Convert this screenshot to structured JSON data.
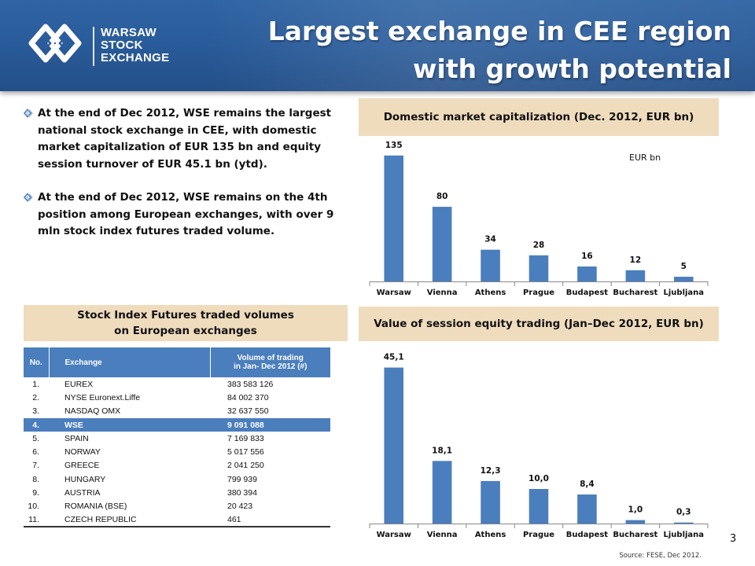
{
  "header": {
    "logo_lines": [
      "WARSAW",
      "STOCK",
      "EXCHANGE"
    ],
    "title_lines": [
      "Largest exchange in CEE region",
      "with growth potential"
    ]
  },
  "bullets": [
    "At the end of Dec 2012, WSE remains the largest national stock exchange in CEE, with domestic market capitalization of EUR 135 bn and equity session turnover of EUR 45.1 bn (ytd).",
    "At the end of Dec 2012, WSE remains on the 4th position among European exchanges, with over 9 mln stock index futures traded volume."
  ],
  "futures": {
    "heading_lines": [
      "Stock Index Futures traded volumes",
      "on European exchanges"
    ],
    "columns": {
      "no": "No.",
      "exchange": "Exchange",
      "volume_lines": [
        "Volume of trading",
        "in Jan- Dec 2012 (#)"
      ]
    },
    "highlight_row": 3,
    "rows": [
      {
        "no": "1.",
        "exchange": "EUREX",
        "volume": "383 583 126"
      },
      {
        "no": "2.",
        "exchange": "NYSE Euronext.Liffe",
        "volume": "84 002 370"
      },
      {
        "no": "3.",
        "exchange": "NASDAQ OMX",
        "volume": "32 637 550"
      },
      {
        "no": "4.",
        "exchange": "WSE",
        "volume": "9 091 088"
      },
      {
        "no": "5.",
        "exchange": "SPAIN",
        "volume": "7 169 833"
      },
      {
        "no": "6.",
        "exchange": "NORWAY",
        "volume": "5 017 556"
      },
      {
        "no": "7.",
        "exchange": "GREECE",
        "volume": "2 041 250"
      },
      {
        "no": "8.",
        "exchange": "HUNGARY",
        "volume": "799 939"
      },
      {
        "no": "9.",
        "exchange": "AUSTRIA",
        "volume": "380 394"
      },
      {
        "no": "10.",
        "exchange": "ROMANIA (BSE)",
        "volume": "20 423"
      },
      {
        "no": "11.",
        "exchange": "CZECH REPUBLIC",
        "volume": "461"
      }
    ]
  },
  "chart_data": [
    {
      "type": "bar",
      "title": "Domestic market capitalization (Dec. 2012, EUR bn)",
      "unit_label": "EUR bn",
      "categories": [
        "Warsaw",
        "Vienna",
        "Athens",
        "Prague",
        "Budapest",
        "Bucharest",
        "Ljubljana"
      ],
      "values": [
        135,
        80,
        34,
        28,
        16,
        12,
        5
      ],
      "labels": [
        "135",
        "80",
        "34",
        "28",
        "16",
        "12",
        "5"
      ],
      "ylim": [
        0,
        150
      ],
      "grid": false,
      "bar_color": "#4a7ebd"
    },
    {
      "type": "bar",
      "title": "Value of session equity trading (Jan–Dec 2012, EUR bn)",
      "categories": [
        "Warsaw",
        "Vienna",
        "Athens",
        "Prague",
        "Budapest",
        "Bucharest",
        "Ljubljana"
      ],
      "values": [
        45.1,
        18.1,
        12.3,
        10.0,
        8.4,
        1.0,
        0.3
      ],
      "labels": [
        "45,1",
        "18,1",
        "12,3",
        "10,0",
        "8,4",
        "1,0",
        "0,3"
      ],
      "ylim": [
        0,
        50
      ],
      "grid": false,
      "bar_color": "#4a7ebd"
    }
  ],
  "footer": {
    "page_number": "3",
    "source": "Source: FESE, Dec 2012."
  },
  "colors": {
    "header_blue": "#2a5c9b",
    "tan": "#efdcbd",
    "bar": "#4a7ebd"
  }
}
